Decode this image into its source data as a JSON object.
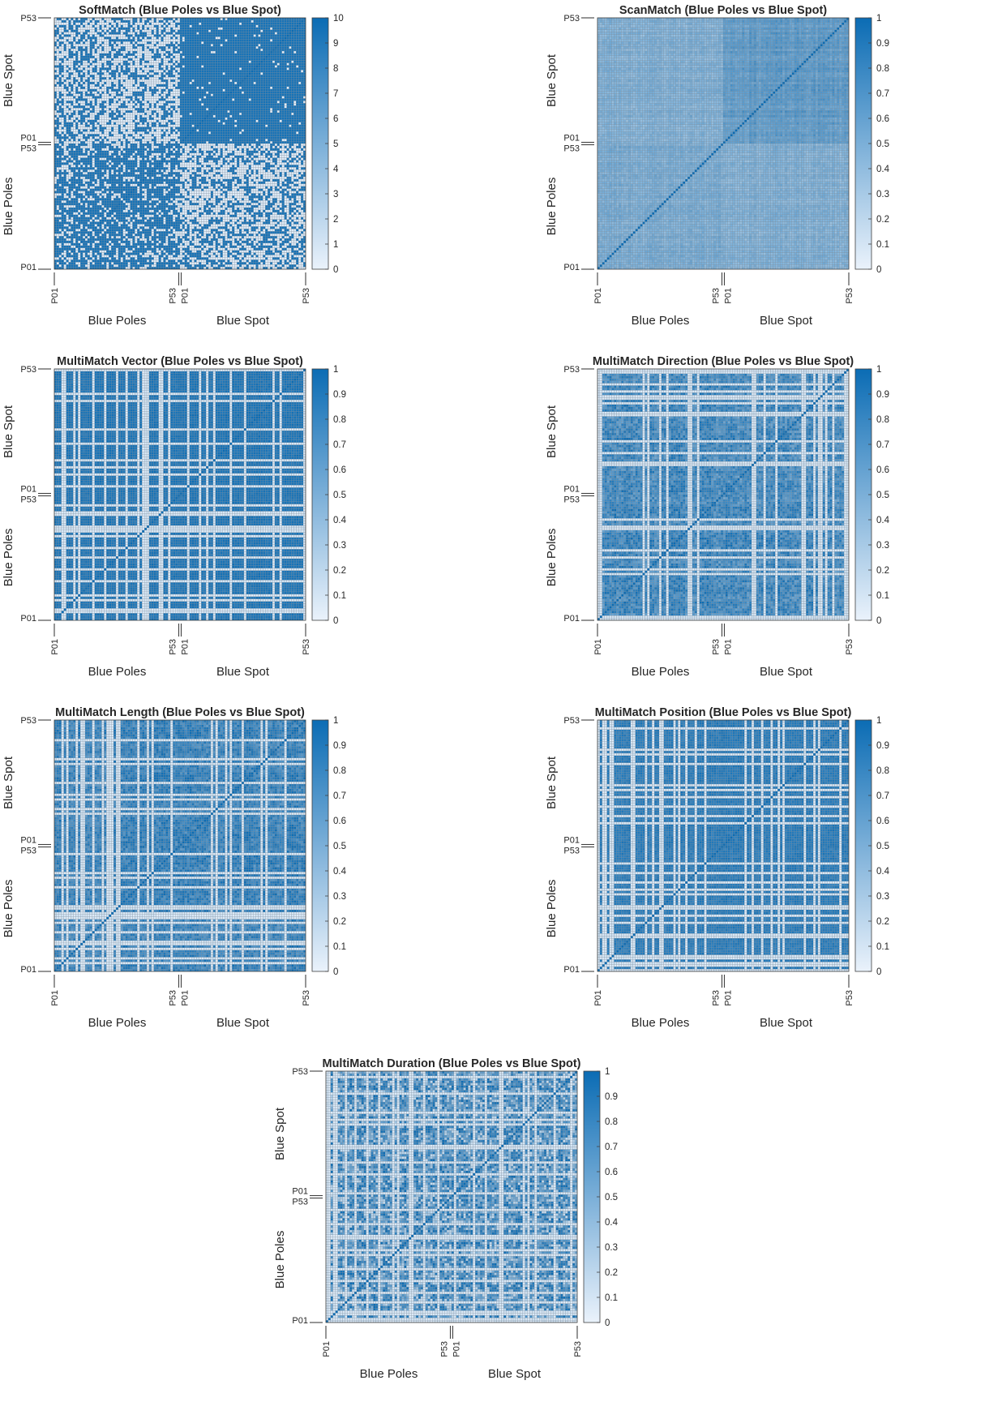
{
  "charts": {
    "softmatch": {
      "title": "SoftMatch (Blue Poles vs Blue Spot)",
      "x_groups": [
        "Blue Poles",
        "Blue Spot"
      ],
      "y_groups": [
        "Blue Poles",
        "Blue Spot"
      ],
      "ticks": {
        "start": "P01",
        "end": "P53"
      },
      "colorbar_ticks": [
        "0",
        "1",
        "2",
        "3",
        "4",
        "5",
        "6",
        "7",
        "8",
        "9",
        "10"
      ]
    },
    "scanmatch": {
      "title": "ScanMatch (Blue Poles vs Blue Spot)",
      "x_groups": [
        "Blue Poles",
        "Blue Spot"
      ],
      "y_groups": [
        "Blue Poles",
        "Blue Spot"
      ],
      "ticks": {
        "start": "P01",
        "end": "P53"
      },
      "colorbar_ticks": [
        "0",
        "0.1",
        "0.2",
        "0.3",
        "0.4",
        "0.5",
        "0.6",
        "0.7",
        "0.8",
        "0.9",
        "1"
      ]
    },
    "vector": {
      "title": "MultiMatch Vector (Blue Poles vs Blue Spot)",
      "x_groups": [
        "Blue Poles",
        "Blue Spot"
      ],
      "y_groups": [
        "Blue Poles",
        "Blue Spot"
      ],
      "ticks": {
        "start": "P01",
        "end": "P53"
      },
      "colorbar_ticks": [
        "0",
        "0.1",
        "0.2",
        "0.3",
        "0.4",
        "0.5",
        "0.6",
        "0.7",
        "0.8",
        "0.9",
        "1"
      ]
    },
    "direction": {
      "title": "MultiMatch Direction (Blue Poles vs Blue Spot)",
      "x_groups": [
        "Blue Poles",
        "Blue Spot"
      ],
      "y_groups": [
        "Blue Poles",
        "Blue Spot"
      ],
      "ticks": {
        "start": "P01",
        "end": "P53"
      },
      "colorbar_ticks": [
        "0",
        "0.1",
        "0.2",
        "0.3",
        "0.4",
        "0.5",
        "0.6",
        "0.7",
        "0.8",
        "0.9",
        "1"
      ]
    },
    "length": {
      "title": "MultiMatch Length (Blue Poles vs Blue Spot)",
      "x_groups": [
        "Blue Poles",
        "Blue Spot"
      ],
      "y_groups": [
        "Blue Poles",
        "Blue Spot"
      ],
      "ticks": {
        "start": "P01",
        "end": "P53"
      },
      "colorbar_ticks": [
        "0",
        "0.1",
        "0.2",
        "0.3",
        "0.4",
        "0.5",
        "0.6",
        "0.7",
        "0.8",
        "0.9",
        "1"
      ]
    },
    "position": {
      "title": "MultiMatch Position (Blue Poles vs Blue Spot)",
      "x_groups": [
        "Blue Poles",
        "Blue Spot"
      ],
      "y_groups": [
        "Blue Poles",
        "Blue Spot"
      ],
      "ticks": {
        "start": "P01",
        "end": "P53"
      },
      "colorbar_ticks": [
        "0",
        "0.1",
        "0.2",
        "0.3",
        "0.4",
        "0.5",
        "0.6",
        "0.7",
        "0.8",
        "0.9",
        "1"
      ]
    },
    "duration": {
      "title": "MultiMatch Duration (Blue Poles vs Blue Spot)",
      "x_groups": [
        "Blue Poles",
        "Blue Spot"
      ],
      "y_groups": [
        "Blue Poles",
        "Blue Spot"
      ],
      "ticks": {
        "start": "P01",
        "end": "P53"
      },
      "colorbar_ticks": [
        "0",
        "0.1",
        "0.2",
        "0.3",
        "0.4",
        "0.5",
        "0.6",
        "0.7",
        "0.8",
        "0.9",
        "1"
      ]
    }
  },
  "chart_data": [
    {
      "type": "heatmap",
      "title": "SoftMatch (Blue Poles vs Blue Spot)",
      "rows": [
        "Blue Poles P01–P53",
        "Blue Spot P01–P53"
      ],
      "cols": [
        "Blue Poles P01–P53",
        "Blue Spot P01–P53"
      ],
      "n_per_group": 53,
      "clim": [
        0,
        10
      ],
      "colormap": [
        "#eaf2fb",
        "#0b6cb4"
      ],
      "block_means": {
        "bp_bp": 7.5,
        "bp_bs": 3.2,
        "bs_bp": 3.2,
        "bs_bs": 9.0
      },
      "diagonal": 10
    },
    {
      "type": "heatmap",
      "title": "ScanMatch (Blue Poles vs Blue Spot)",
      "rows": [
        "Blue Poles P01–P53",
        "Blue Spot P01–P53"
      ],
      "cols": [
        "Blue Poles P01–P53",
        "Blue Spot P01–P53"
      ],
      "n_per_group": 53,
      "clim": [
        0,
        1
      ],
      "colormap": [
        "#eaf2fb",
        "#0b6cb4"
      ],
      "block_means": {
        "bp_bp": 0.5,
        "bp_bs": 0.47,
        "bs_bp": 0.47,
        "bs_bs": 0.63
      },
      "diagonal": 1
    },
    {
      "type": "heatmap",
      "title": "MultiMatch Vector (Blue Poles vs Blue Spot)",
      "rows": [
        "Blue Poles P01–P53",
        "Blue Spot P01–P53"
      ],
      "cols": [
        "Blue Poles P01–P53",
        "Blue Spot P01–P53"
      ],
      "n_per_group": 53,
      "clim": [
        0,
        1
      ],
      "colormap": [
        "#eaf2fb",
        "#0b6cb4"
      ],
      "block_means": {
        "bp_bp": 0.94,
        "bp_bs": 0.93,
        "bs_bp": 0.93,
        "bs_bs": 0.94
      },
      "diagonal": 1
    },
    {
      "type": "heatmap",
      "title": "MultiMatch Direction (Blue Poles vs Blue Spot)",
      "rows": [
        "Blue Poles P01–P53",
        "Blue Spot P01–P53"
      ],
      "cols": [
        "Blue Poles P01–P53",
        "Blue Spot P01–P53"
      ],
      "n_per_group": 53,
      "clim": [
        0,
        1
      ],
      "colormap": [
        "#eaf2fb",
        "#0b6cb4"
      ],
      "block_means": {
        "bp_bp": 0.8,
        "bp_bs": 0.78,
        "bs_bp": 0.78,
        "bs_bs": 0.8
      },
      "diagonal": 1
    },
    {
      "type": "heatmap",
      "title": "MultiMatch Length (Blue Poles vs Blue Spot)",
      "rows": [
        "Blue Poles P01–P53",
        "Blue Spot P01–P53"
      ],
      "cols": [
        "Blue Poles P01–P53",
        "Blue Spot P01–P53"
      ],
      "n_per_group": 53,
      "clim": [
        0,
        1
      ],
      "colormap": [
        "#eaf2fb",
        "#0b6cb4"
      ],
      "block_means": {
        "bp_bp": 0.86,
        "bp_bs": 0.85,
        "bs_bp": 0.85,
        "bs_bs": 0.86
      },
      "diagonal": 1
    },
    {
      "type": "heatmap",
      "title": "MultiMatch Position (Blue Poles vs Blue Spot)",
      "rows": [
        "Blue Poles P01–P53",
        "Blue Spot P01–P53"
      ],
      "cols": [
        "Blue Poles P01–P53",
        "Blue Spot P01–P53"
      ],
      "n_per_group": 53,
      "clim": [
        0,
        1
      ],
      "colormap": [
        "#eaf2fb",
        "#0b6cb4"
      ],
      "block_means": {
        "bp_bp": 0.88,
        "bp_bs": 0.87,
        "bs_bp": 0.87,
        "bs_bs": 0.88
      },
      "diagonal": 1
    },
    {
      "type": "heatmap",
      "title": "MultiMatch Duration (Blue Poles vs Blue Spot)",
      "rows": [
        "Blue Poles P01–P53",
        "Blue Spot P01–P53"
      ],
      "cols": [
        "Blue Poles P01–P53",
        "Blue Spot P01–P53"
      ],
      "n_per_group": 53,
      "clim": [
        0,
        1
      ],
      "colormap": [
        "#eaf2fb",
        "#0b6cb4"
      ],
      "block_means": {
        "bp_bp": 0.76,
        "bp_bs": 0.74,
        "bs_bp": 0.74,
        "bs_bs": 0.76
      },
      "diagonal": 1
    }
  ]
}
